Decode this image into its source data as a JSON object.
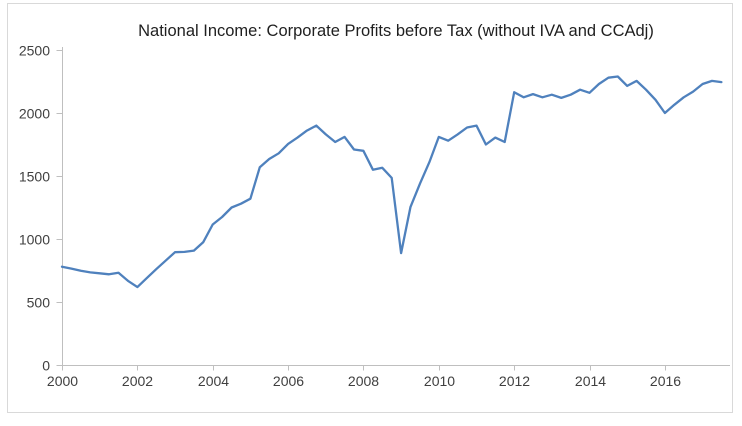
{
  "chart_data": {
    "type": "line",
    "title": "National Income: Corporate Profits before Tax (without IVA and CCAdj)",
    "xlabel": "",
    "ylabel": "",
    "x_tick_labels": [
      "2000",
      "2002",
      "2004",
      "2006",
      "2008",
      "2010",
      "2012",
      "2014",
      "2016"
    ],
    "y_tick_labels": [
      "0",
      "500",
      "1000",
      "1500",
      "2000",
      "2500"
    ],
    "ylim": [
      0,
      2500
    ],
    "y_tick_step": 500,
    "x_quarters_per_tick": 8,
    "grid": false,
    "legend": "none",
    "frequency": "quarterly",
    "x_range": [
      "2000Q1",
      "2017Q3"
    ],
    "series": [
      {
        "name": "Corporate Profits before Tax (without IVA and CCAdj)",
        "quarters": [
          "2000Q1",
          "2000Q2",
          "2000Q3",
          "2000Q4",
          "2001Q1",
          "2001Q2",
          "2001Q3",
          "2001Q4",
          "2002Q1",
          "2002Q2",
          "2002Q3",
          "2002Q4",
          "2003Q1",
          "2003Q2",
          "2003Q3",
          "2003Q4",
          "2004Q1",
          "2004Q2",
          "2004Q3",
          "2004Q4",
          "2005Q1",
          "2005Q2",
          "2005Q3",
          "2005Q4",
          "2006Q1",
          "2006Q2",
          "2006Q3",
          "2006Q4",
          "2007Q1",
          "2007Q2",
          "2007Q3",
          "2007Q4",
          "2008Q1",
          "2008Q2",
          "2008Q3",
          "2008Q4",
          "2009Q1",
          "2009Q2",
          "2009Q3",
          "2009Q4",
          "2010Q1",
          "2010Q2",
          "2010Q3",
          "2010Q4",
          "2011Q1",
          "2011Q2",
          "2011Q3",
          "2011Q4",
          "2012Q1",
          "2012Q2",
          "2012Q3",
          "2012Q4",
          "2013Q1",
          "2013Q2",
          "2013Q3",
          "2013Q4",
          "2014Q1",
          "2014Q2",
          "2014Q3",
          "2014Q4",
          "2015Q1",
          "2015Q2",
          "2015Q3",
          "2015Q4",
          "2016Q1",
          "2016Q2",
          "2016Q3",
          "2016Q4",
          "2017Q1",
          "2017Q2",
          "2017Q3"
        ],
        "values": [
          780,
          765,
          748,
          735,
          728,
          720,
          732,
          668,
          618,
          690,
          760,
          828,
          895,
          898,
          908,
          975,
          1115,
          1175,
          1250,
          1280,
          1320,
          1570,
          1635,
          1680,
          1755,
          1805,
          1860,
          1900,
          1830,
          1770,
          1810,
          1710,
          1700,
          1550,
          1565,
          1485,
          888,
          1255,
          1440,
          1610,
          1810,
          1780,
          1830,
          1885,
          1900,
          1750,
          1805,
          1770,
          2165,
          2125,
          2150,
          2125,
          2145,
          2120,
          2145,
          2185,
          2160,
          2230,
          2280,
          2290,
          2215,
          2255,
          2185,
          2105,
          2000,
          2065,
          2125,
          2170,
          2230,
          2255,
          2245
        ]
      }
    ],
    "colors": {
      "line": "#4F81BD",
      "axis": "#BFBFBF",
      "tick_labels": "#404040",
      "title": "#1F1F1F",
      "frame_border": "#D9D9D9",
      "background": "#FFFFFF"
    }
  }
}
